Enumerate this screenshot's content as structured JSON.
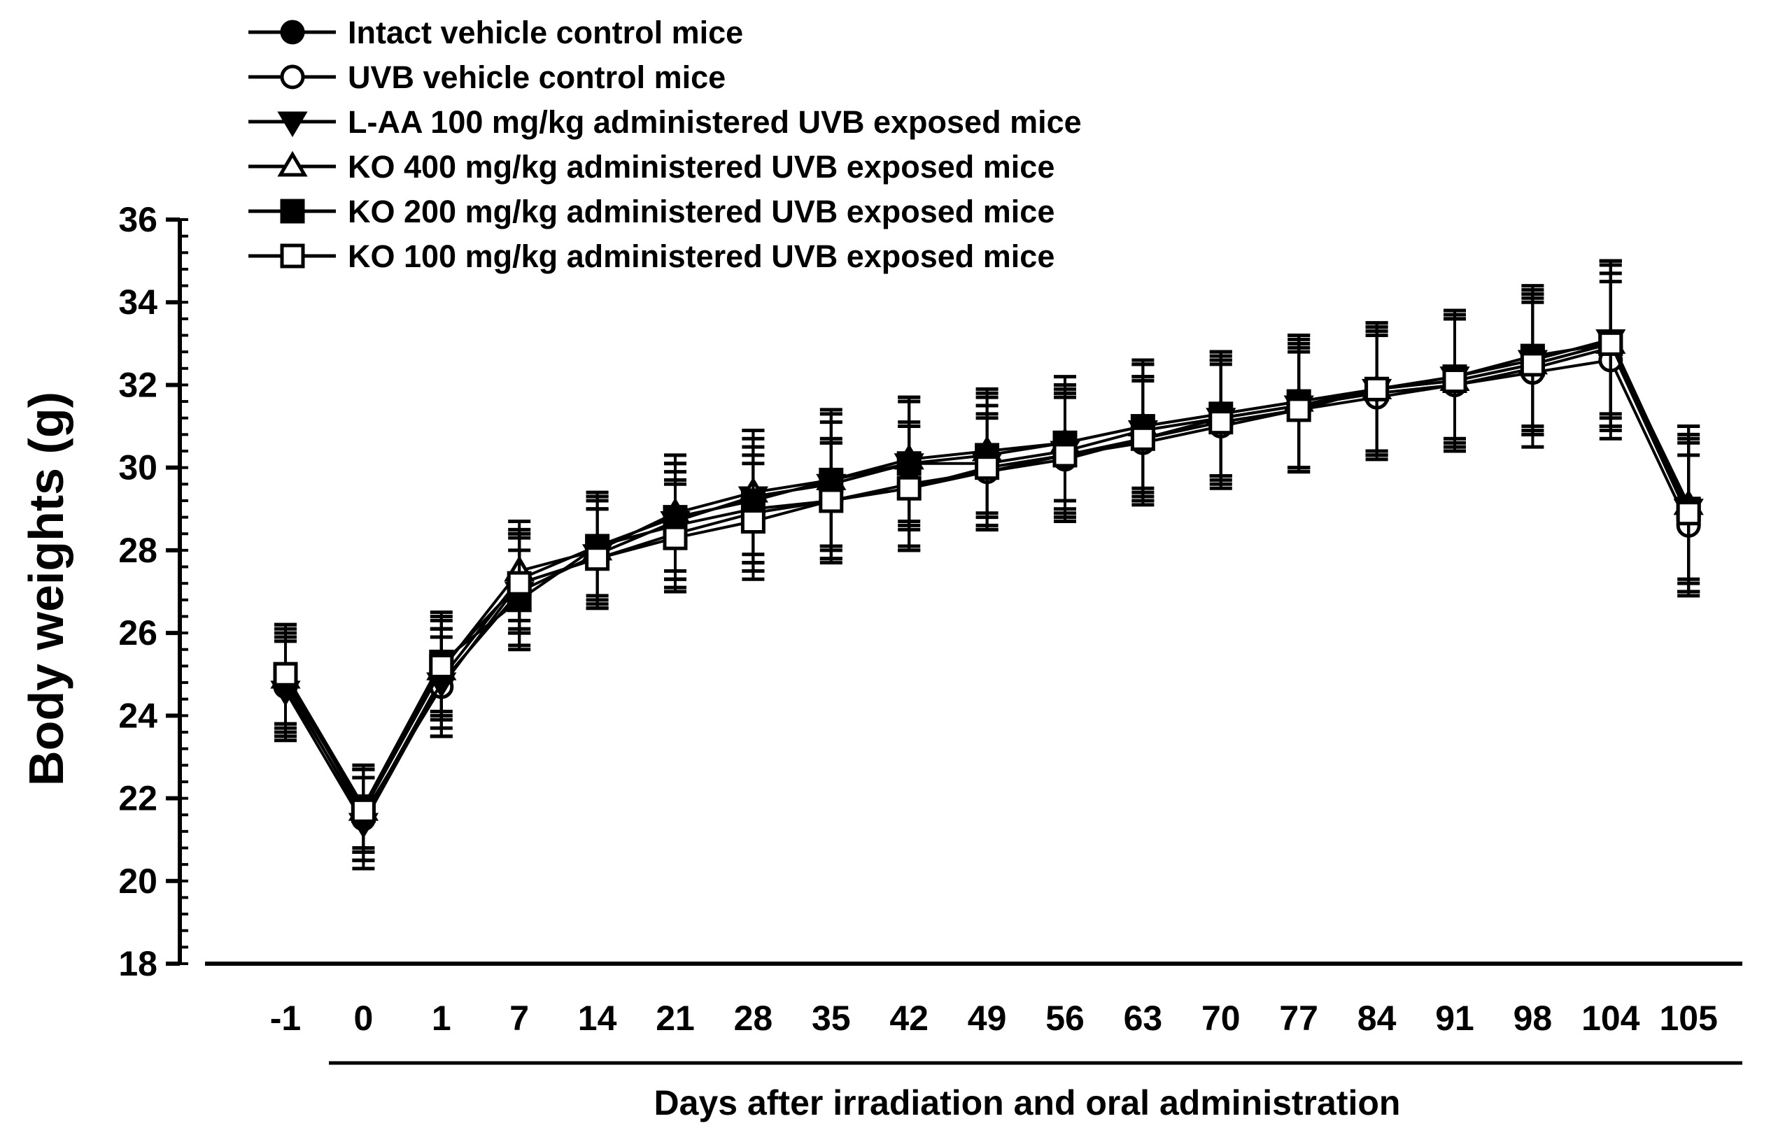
{
  "chart_data": {
    "type": "line",
    "title": "",
    "xlabel": "Days after irradiation and oral administration",
    "ylabel": "Body weights (g)",
    "ylim": [
      18,
      36
    ],
    "yticks": [
      18,
      20,
      22,
      24,
      26,
      28,
      30,
      32,
      34,
      36
    ],
    "categories": [
      "-1",
      "0",
      "1",
      "7",
      "14",
      "21",
      "28",
      "35",
      "42",
      "49",
      "56",
      "63",
      "70",
      "77",
      "84",
      "91",
      "98",
      "104",
      "105"
    ],
    "legend_position": "top-left",
    "series": [
      {
        "name": "Intact vehicle control mice",
        "marker": "filled-circle",
        "values": [
          24.8,
          21.5,
          24.9,
          27.3,
          28.1,
          28.6,
          29.0,
          29.2,
          29.6,
          29.9,
          30.2,
          30.7,
          31.2,
          31.5,
          31.8,
          32.0,
          32.4,
          32.9,
          28.8
        ],
        "errors": [
          1.2,
          1.0,
          1.2,
          1.2,
          1.3,
          1.3,
          1.5,
          1.5,
          1.5,
          1.3,
          1.5,
          1.5,
          1.4,
          1.5,
          1.5,
          1.6,
          1.6,
          2.0,
          1.8
        ]
      },
      {
        "name": "UVB vehicle control mice",
        "marker": "open-circle",
        "values": [
          24.7,
          21.6,
          24.7,
          27.2,
          27.8,
          28.4,
          28.9,
          29.2,
          29.5,
          29.9,
          30.3,
          30.6,
          31.0,
          31.4,
          31.7,
          32.0,
          32.3,
          32.6,
          28.6
        ],
        "errors": [
          1.2,
          1.1,
          1.2,
          1.2,
          1.2,
          1.3,
          1.4,
          1.4,
          1.5,
          1.4,
          1.5,
          1.5,
          1.5,
          1.4,
          1.5,
          1.6,
          1.8,
          1.9,
          1.7
        ]
      },
      {
        "name": "L-AA 100 mg/kg administered UVB exposed mice",
        "marker": "filled-triangle-down",
        "values": [
          24.6,
          21.4,
          24.8,
          27.0,
          27.9,
          28.7,
          29.3,
          29.6,
          30.1,
          30.1,
          30.4,
          30.9,
          31.2,
          31.5,
          31.9,
          32.2,
          32.6,
          33.1,
          29.0
        ],
        "errors": [
          1.2,
          1.1,
          1.3,
          1.3,
          1.3,
          1.4,
          1.6,
          1.5,
          1.5,
          1.6,
          1.5,
          1.6,
          1.5,
          1.6,
          1.6,
          1.5,
          1.7,
          1.9,
          2.0
        ]
      },
      {
        "name": "KO 400 mg/kg administered UVB exposed mice",
        "marker": "open-triangle-up",
        "values": [
          24.9,
          21.7,
          25.1,
          27.5,
          28.0,
          28.9,
          29.4,
          29.7,
          30.2,
          30.4,
          30.6,
          31.0,
          31.3,
          31.6,
          31.9,
          32.1,
          32.5,
          33.0,
          29.1
        ],
        "errors": [
          1.2,
          1.0,
          1.2,
          1.2,
          1.3,
          1.4,
          1.5,
          1.6,
          1.5,
          1.5,
          1.4,
          1.5,
          1.5,
          1.6,
          1.5,
          1.6,
          1.7,
          2.0,
          1.9
        ]
      },
      {
        "name": "KO 200 mg/kg administered UVB exposed mice",
        "marker": "filled-square",
        "values": [
          25.0,
          21.8,
          25.3,
          26.8,
          28.1,
          28.8,
          29.2,
          29.7,
          30.1,
          30.3,
          30.6,
          31.0,
          31.3,
          31.6,
          31.9,
          32.2,
          32.7,
          33.0,
          29.0
        ],
        "errors": [
          1.2,
          1.0,
          1.2,
          1.2,
          1.2,
          1.3,
          1.5,
          1.7,
          1.6,
          1.5,
          1.6,
          1.6,
          1.5,
          1.6,
          1.6,
          1.6,
          1.7,
          1.7,
          1.7
        ]
      },
      {
        "name": "KO 100 mg/kg administered UVB exposed mice",
        "marker": "open-square",
        "values": [
          25.0,
          21.7,
          25.2,
          27.2,
          27.8,
          28.3,
          28.7,
          29.2,
          29.5,
          30.0,
          30.3,
          30.7,
          31.1,
          31.4,
          31.9,
          32.1,
          32.5,
          33.0,
          28.9
        ],
        "errors": [
          1.2,
          1.0,
          1.2,
          1.2,
          1.2,
          1.3,
          1.4,
          1.4,
          1.5,
          1.5,
          1.5,
          1.5,
          1.5,
          1.5,
          1.5,
          1.6,
          1.7,
          2.0,
          1.9
        ]
      }
    ]
  }
}
